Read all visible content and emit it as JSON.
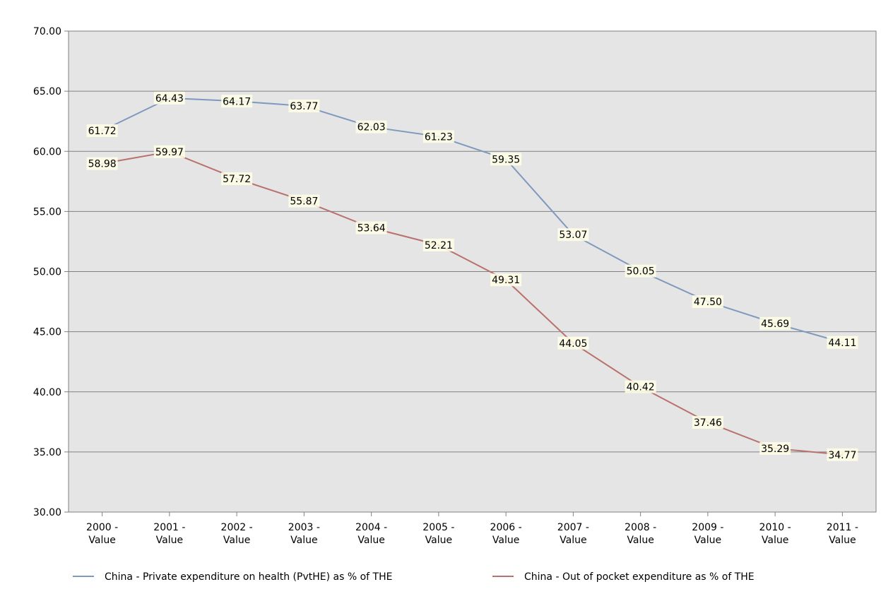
{
  "chart_data": {
    "type": "line",
    "categories": [
      "2000 - Value",
      "2001 - Value",
      "2002 - Value",
      "2003 - Value",
      "2004 - Value",
      "2005 - Value",
      "2006 - Value",
      "2007 - Value",
      "2008 - Value",
      "2009 - Value",
      "2010 - Value",
      "2011 - Value"
    ],
    "series": [
      {
        "name": "China - Private expenditure on health (PvtHE) as % of THE",
        "color": "#7f99bd",
        "values": [
          61.72,
          64.43,
          64.17,
          63.77,
          62.03,
          61.23,
          59.35,
          53.07,
          50.05,
          47.5,
          45.69,
          44.11
        ],
        "labels": [
          "61.72",
          "64.43",
          "64.17",
          "63.77",
          "62.03",
          "61.23",
          "59.35",
          "53.07",
          "50.05",
          "47.50",
          "45.69",
          "44.11"
        ]
      },
      {
        "name": "China - Out of pocket expenditure as % of THE",
        "color": "#b9716d",
        "values": [
          58.98,
          59.97,
          57.72,
          55.87,
          53.64,
          52.21,
          49.31,
          44.05,
          40.42,
          37.46,
          35.29,
          34.77
        ],
        "labels": [
          "58.98",
          "59.97",
          "57.72",
          "55.87",
          "53.64",
          "52.21",
          "49.31",
          "44.05",
          "40.42",
          "37.46",
          "35.29",
          "34.77"
        ]
      }
    ],
    "ylim": [
      30,
      70
    ],
    "yticks": [
      "30.00",
      "35.00",
      "40.00",
      "45.00",
      "50.00",
      "55.00",
      "60.00",
      "65.00",
      "70.00"
    ],
    "xlabel": "",
    "ylabel": "",
    "grid": true,
    "legend_position": "bottom",
    "plot_background": "#e5e5e5"
  }
}
